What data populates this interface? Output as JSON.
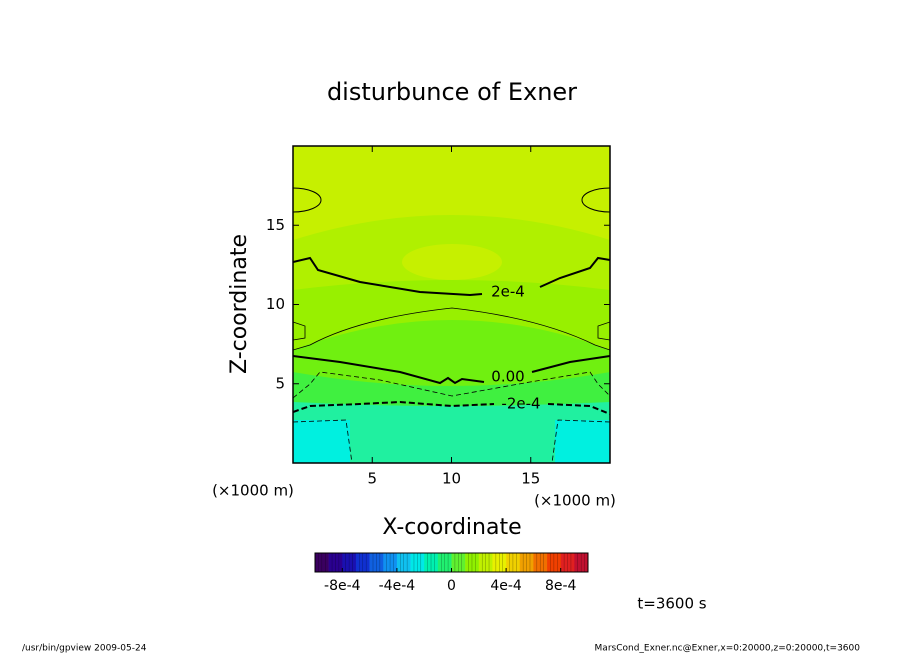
{
  "chart_data": {
    "type": "contour",
    "title": "disturbunce of Exner",
    "xlabel": "X-coordinate",
    "ylabel": "Z-coordinate",
    "xunit": "(×1000 m)",
    "yunit": "(×1000 m)",
    "xlim": [
      0,
      20
    ],
    "ylim": [
      0,
      20
    ],
    "xticks": [
      5,
      10,
      15
    ],
    "yticks": [
      5,
      10,
      15
    ],
    "contours": [
      {
        "value": 0.0002,
        "label": "2e-4"
      },
      {
        "value": 0,
        "label": "0.00"
      },
      {
        "value": -0.0002,
        "label": "-2e-4"
      }
    ],
    "colorbar": {
      "lim": [
        -0.001,
        0.001
      ],
      "colors": [
        "#3a0060",
        "#2a0090",
        "#1a10b0",
        "#1030d0",
        "#1060e0",
        "#1090f0",
        "#10c0f0",
        "#00e8e8",
        "#00f0b0",
        "#20f070",
        "#60f030",
        "#90f000",
        "#c0f000",
        "#e8f000",
        "#f0d000",
        "#f0a000",
        "#f07000",
        "#f04000",
        "#e02020",
        "#c01030"
      ],
      "ticks": [
        {
          "value": -0.0008,
          "label": "-8e-4"
        },
        {
          "value": -0.0004,
          "label": "-4e-4"
        },
        0,
        {
          "value": 0.0004,
          "label": "4e-4"
        },
        {
          "value": 0.0008,
          "label": "8e-4"
        }
      ]
    },
    "time_label": "t=3600 s",
    "footer_left": "/usr/bin/gpview  2009-05-24",
    "footer_right": "MarsCond_Exner.nc@Exner,x=0:20000,z=0:20000,t=3600"
  }
}
